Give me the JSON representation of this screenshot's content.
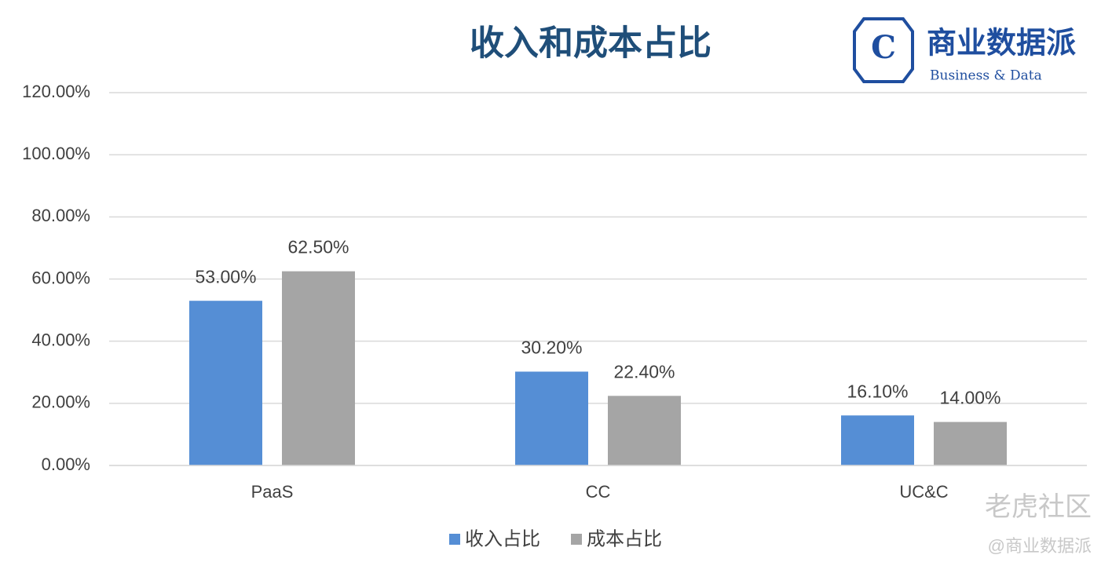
{
  "chart_data": {
    "type": "bar",
    "title": "收入和成本占比",
    "logo_mark": "C",
    "logo_text": "商业数据派",
    "logo_subtext": "Business & Data",
    "watermarks": [
      "老虎社区",
      "@商业数据派"
    ],
    "categories": [
      "PaaS",
      "CC",
      "UC&C"
    ],
    "series": [
      {
        "name": "收入占比",
        "color": "#558ed5",
        "values": [
          53.0,
          30.2,
          16.1
        ],
        "value_labels": [
          "53.00%",
          "30.20%",
          "16.10%"
        ]
      },
      {
        "name": "成本占比",
        "color": "#a5a5a5",
        "values": [
          62.5,
          22.4,
          14.0
        ],
        "value_labels": [
          "62.50%",
          "22.40%",
          "14.00%"
        ]
      }
    ],
    "ylim": [
      0,
      120
    ],
    "yticks": [
      {
        "value": 0,
        "label": "0.00%"
      },
      {
        "value": 20,
        "label": "20.00%"
      },
      {
        "value": 40,
        "label": "40.00%"
      },
      {
        "value": 60,
        "label": "60.00%"
      },
      {
        "value": 80,
        "label": "80.00%"
      },
      {
        "value": 100,
        "label": "100.00%"
      },
      {
        "value": 120,
        "label": "120.00%"
      }
    ],
    "grid": true,
    "legend": "bottom"
  }
}
